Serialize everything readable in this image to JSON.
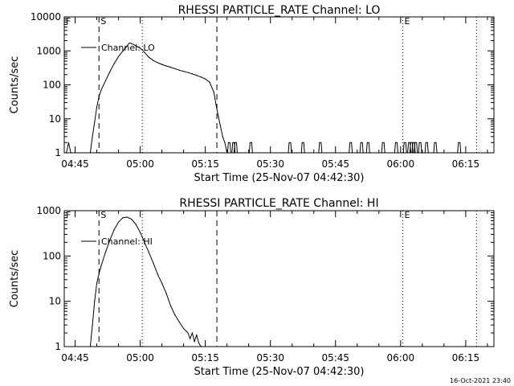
{
  "timestamp": "16-Oct-2021 23:40",
  "chart_data": [
    {
      "type": "line",
      "title": "RHESSI PARTICLE_RATE Channel: LO",
      "xlabel": "Start Time (25-Nov-07 04:42:30)",
      "ylabel": "Counts/sec",
      "yscale": "log",
      "xlim": [
        "04:42:30",
        "06:21:30"
      ],
      "ylim": [
        1,
        10000
      ],
      "xticks": [
        "04:45",
        "05:00",
        "05:15",
        "05:30",
        "05:45",
        "06:00",
        "06:15"
      ],
      "yticks": [
        "1",
        "10",
        "100",
        "1000",
        "10000"
      ],
      "legend": {
        "position": "top-left",
        "entries": [
          "Channel: LO"
        ]
      },
      "markers": [
        {
          "label": "S",
          "time": "04:50:30",
          "style": "dashed"
        },
        {
          "label": "",
          "time": "05:00:30",
          "style": "dotted"
        },
        {
          "label": "",
          "time": "05:17:40",
          "style": "dashed"
        },
        {
          "label": "E",
          "time": "06:00:30",
          "style": "dotted"
        },
        {
          "label": "",
          "time": "06:17:30",
          "style": "dotted"
        }
      ],
      "corner_label": "F",
      "series": [
        {
          "x": [
            "04:43:00",
            "04:43:30",
            "04:44:00",
            "04:48:30",
            "04:49:00",
            "04:49:30",
            "04:50:00",
            "04:50:30",
            "04:51:00",
            "04:52:00",
            "04:53:00",
            "04:54:00",
            "04:55:00",
            "04:56:00",
            "04:57:00",
            "04:57:30",
            "04:58:00",
            "04:59:00",
            "05:00:00",
            "05:01:00",
            "05:02:00",
            "05:03:00",
            "05:04:00",
            "05:05:00",
            "05:06:00",
            "05:07:00",
            "05:08:00",
            "05:09:00",
            "05:10:00",
            "05:11:00",
            "05:12:00",
            "05:13:00",
            "05:14:00",
            "05:15:00",
            "05:16:00",
            "05:17:00",
            "05:17:30",
            "05:18:00",
            "05:18:30",
            "05:19:00",
            "05:19:30",
            "05:20:00"
          ],
          "y": [
            1,
            2,
            1,
            1,
            3,
            8,
            22,
            45,
            70,
            130,
            240,
            420,
            680,
            1000,
            1400,
            1700,
            1650,
            1400,
            1200,
            900,
            650,
            520,
            450,
            400,
            360,
            330,
            300,
            270,
            250,
            230,
            210,
            190,
            170,
            150,
            120,
            60,
            25,
            12,
            6,
            3,
            2,
            1
          ]
        },
        {
          "spikes": [
            "05:20:30",
            "05:21:30",
            "05:22:00",
            "05:25:30",
            "05:34:30",
            "05:37:30",
            "05:41:30",
            "05:48:30",
            "05:51:00",
            "05:52:30",
            "05:56:00",
            "05:59:00",
            "06:01:00",
            "06:02:00",
            "06:02:30",
            "06:03:00",
            "06:03:30",
            "06:04:30",
            "06:06:00",
            "06:08:00",
            "06:13:30"
          ],
          "value": 2
        }
      ]
    },
    {
      "type": "line",
      "title": "RHESSI PARTICLE_RATE Channel: HI",
      "xlabel": "Start Time (25-Nov-07 04:42:30)",
      "ylabel": "Counts/sec",
      "yscale": "log",
      "xlim": [
        "04:42:30",
        "06:21:30"
      ],
      "ylim": [
        1,
        1000
      ],
      "xticks": [
        "04:45",
        "05:00",
        "05:15",
        "05:30",
        "05:45",
        "06:00",
        "06:15"
      ],
      "yticks": [
        "1",
        "10",
        "100",
        "1000"
      ],
      "legend": {
        "position": "top-left",
        "entries": [
          "Channel: HI"
        ]
      },
      "markers": [
        {
          "label": "S",
          "time": "04:50:30",
          "style": "dashed"
        },
        {
          "label": "",
          "time": "05:00:30",
          "style": "dotted"
        },
        {
          "label": "",
          "time": "05:17:40",
          "style": "dashed"
        },
        {
          "label": "E",
          "time": "06:00:30",
          "style": "dotted"
        },
        {
          "label": "",
          "time": "06:17:30",
          "style": "dotted"
        }
      ],
      "corner_label": "F",
      "series": [
        {
          "x": [
            "04:48:30",
            "04:49:00",
            "04:49:30",
            "04:50:00",
            "04:50:30",
            "04:51:00",
            "04:52:00",
            "04:53:00",
            "04:54:00",
            "04:55:00",
            "04:56:00",
            "04:57:00",
            "04:58:00",
            "04:59:00",
            "05:00:00",
            "05:01:00",
            "05:02:00",
            "05:03:00",
            "05:04:00",
            "05:05:00",
            "05:06:00",
            "05:07:00",
            "05:08:00",
            "05:09:00",
            "05:10:00",
            "05:11:00",
            "05:11:30",
            "05:12:00",
            "05:12:30",
            "05:13:00",
            "05:13:30",
            "05:14:00"
          ],
          "y": [
            1,
            3,
            10,
            25,
            40,
            60,
            120,
            220,
            380,
            560,
            700,
            720,
            650,
            500,
            330,
            200,
            120,
            70,
            40,
            25,
            15,
            8,
            5,
            3.5,
            2.5,
            2,
            1.5,
            2,
            1.3,
            1.8,
            1.2,
            1
          ]
        }
      ]
    }
  ]
}
